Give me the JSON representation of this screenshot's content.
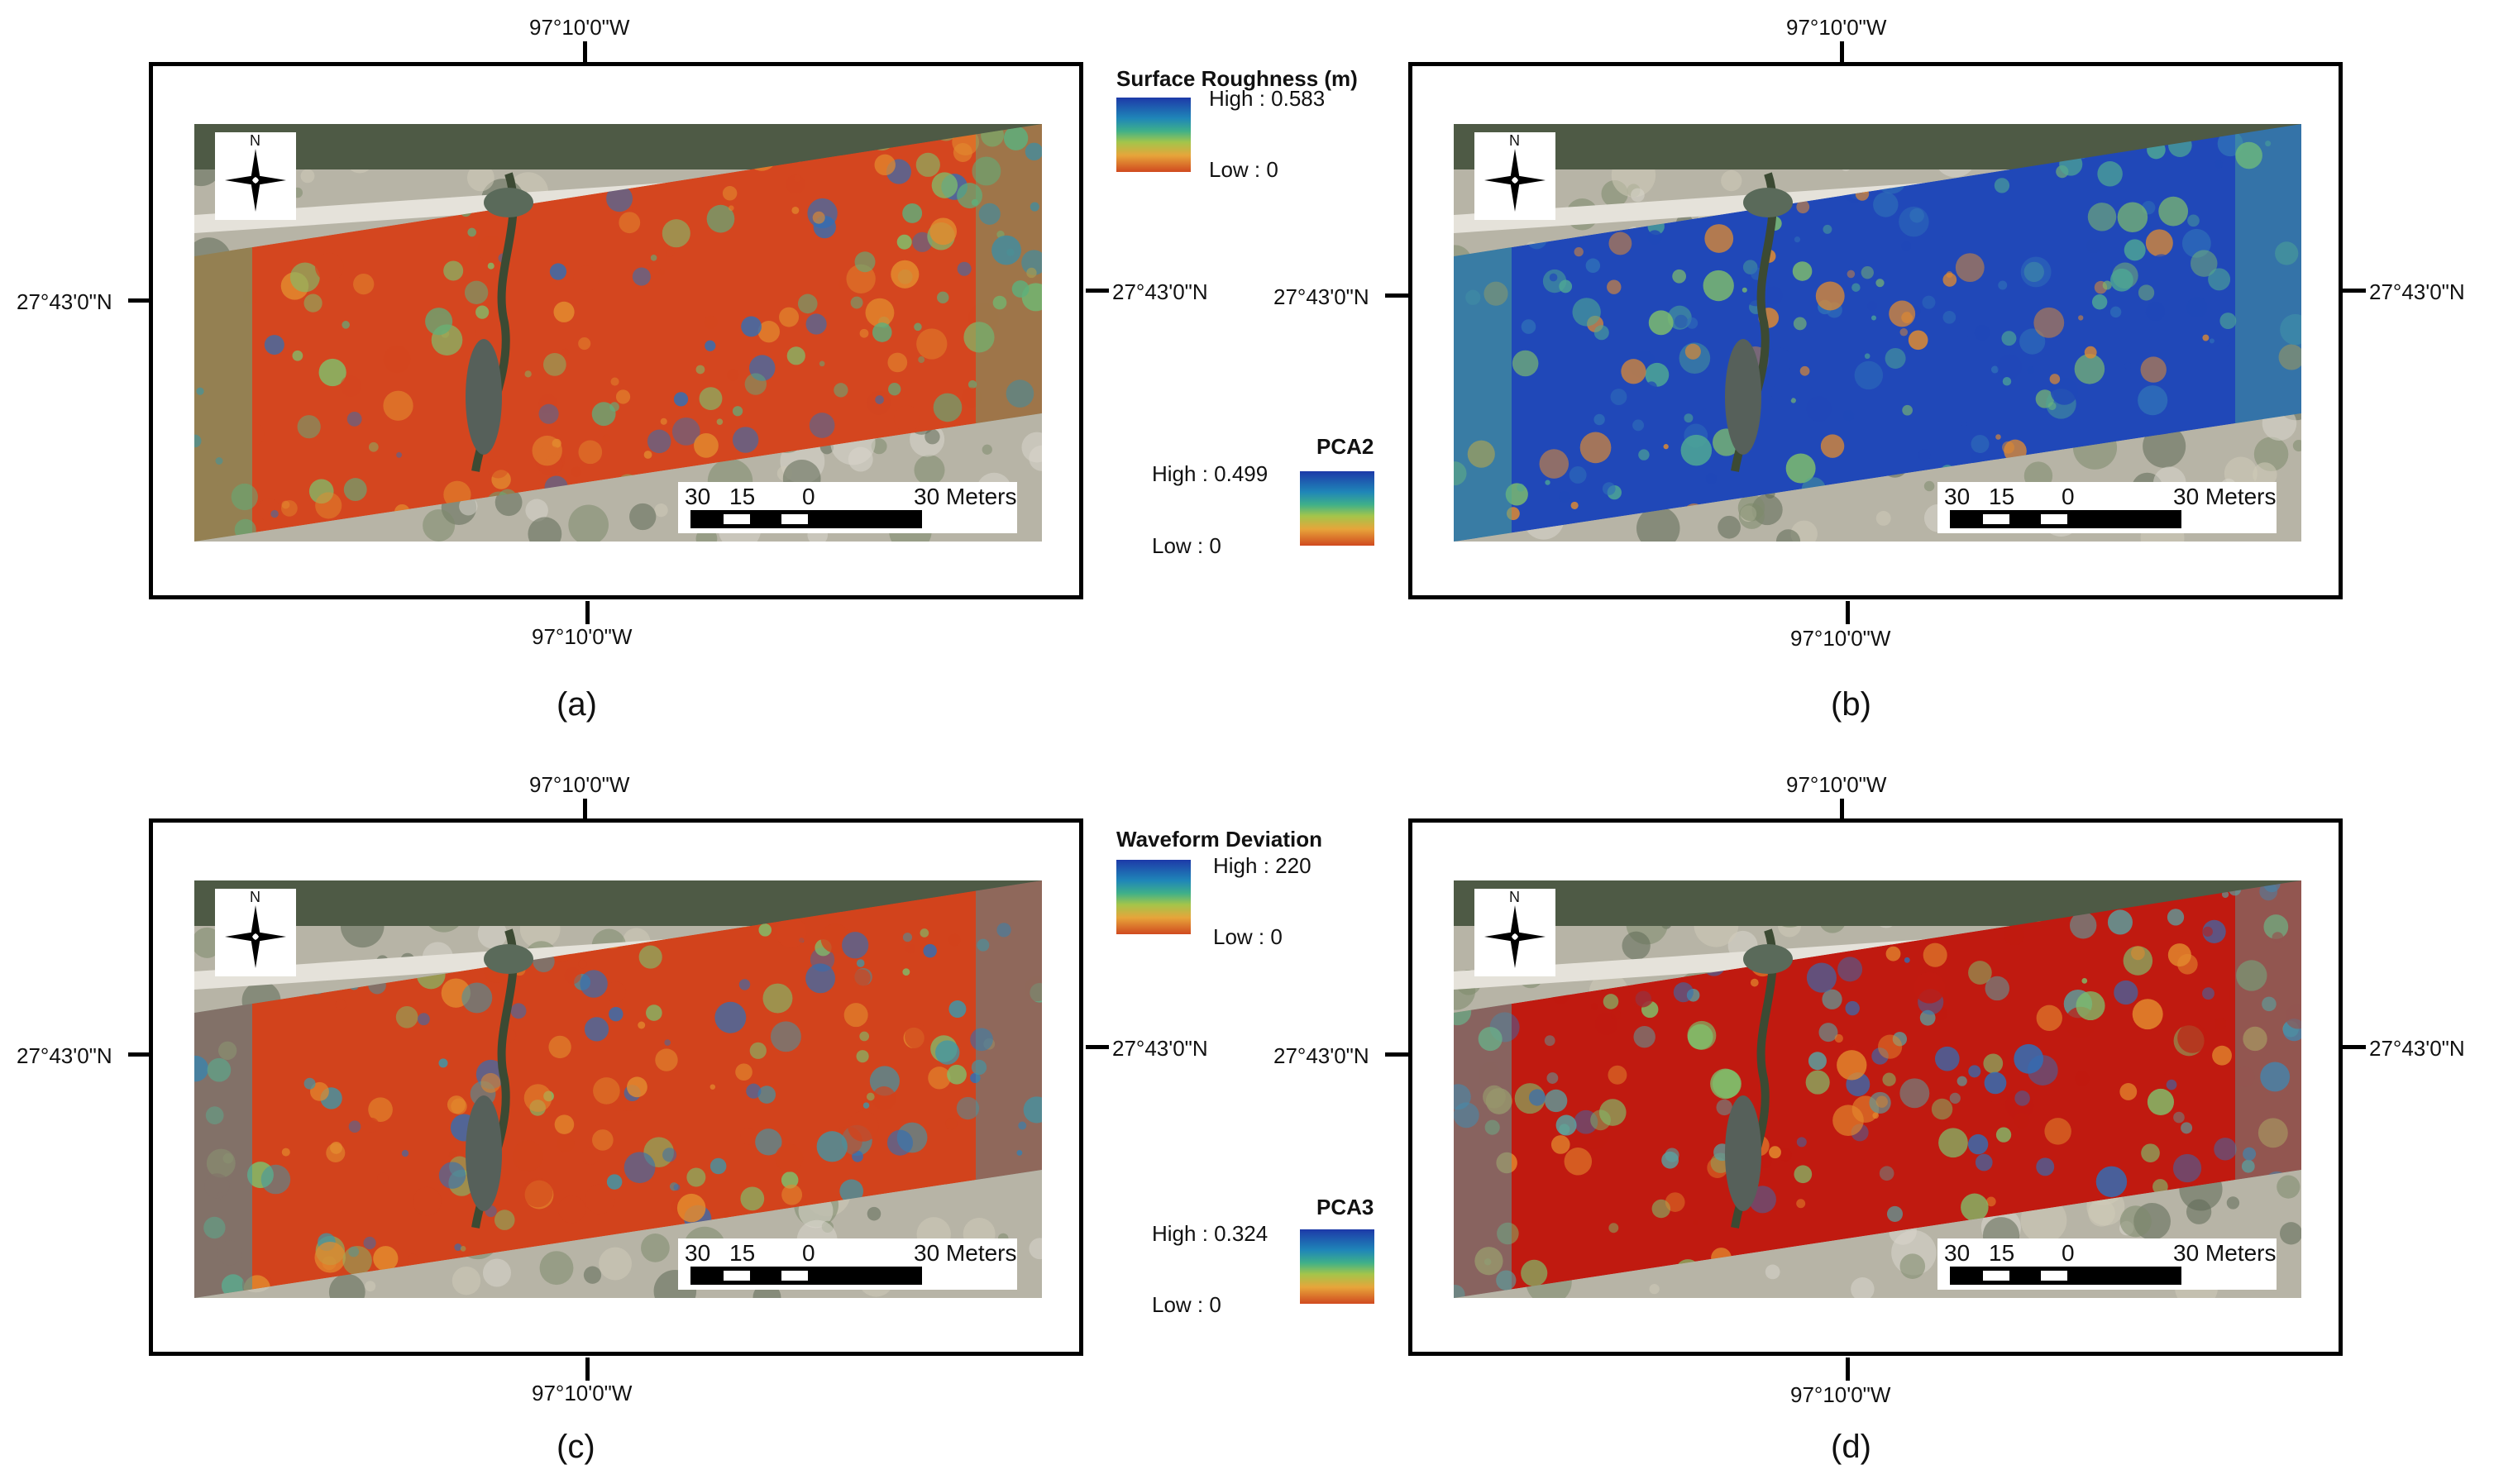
{
  "panels": [
    {
      "id": "a",
      "caption": "(a)",
      "lon_top": "97°10'0\"W",
      "lon_bottom": "97°10'0\"W",
      "lat_left": "27°43'0\"N",
      "lat_right": "27°43'0\"N",
      "north_label": "N",
      "scale_labels": [
        "30",
        "15",
        "0",
        "30 Meters"
      ],
      "dominant_color": "#d4461f",
      "secondary_color": "#5eb07c"
    },
    {
      "id": "b",
      "caption": "(b)",
      "lon_top": "97°10'0\"W",
      "lon_bottom": "97°10'0\"W",
      "lat_left": "27°43'0\"N",
      "lat_right": "27°43'0\"N",
      "north_label": "N",
      "scale_labels": [
        "30",
        "15",
        "0",
        "30 Meters"
      ],
      "dominant_color": "#2048b8",
      "secondary_color": "#4ea894"
    },
    {
      "id": "c",
      "caption": "(c)",
      "lon_top": "97°10'0\"W",
      "lon_bottom": "97°10'0\"W",
      "lat_left": "27°43'0\"N",
      "lat_right": "27°43'0\"N",
      "north_label": "N",
      "scale_labels": [
        "30",
        "15",
        "0",
        "30 Meters"
      ],
      "dominant_color": "#d2431c",
      "secondary_color": "#3f97a8"
    },
    {
      "id": "d",
      "caption": "(d)",
      "lon_top": "97°10'0\"W",
      "lon_bottom": "97°10'0\"W",
      "lat_left": "27°43'0\"N",
      "lat_right": "27°43'0\"N",
      "north_label": "N",
      "scale_labels": [
        "30",
        "15",
        "0",
        "30 Meters"
      ],
      "dominant_color": "#c01a10",
      "secondary_color": "#5aa0a0"
    }
  ],
  "legends": {
    "surface_roughness": {
      "title": "Surface Roughness (m)",
      "high": "High : 0.583",
      "low": "Low : 0"
    },
    "pca2": {
      "title": "PCA2",
      "high": "High : 0.499",
      "low": "Low : 0"
    },
    "waveform_deviation": {
      "title": "Waveform Deviation",
      "high": "High : 220",
      "low": "Low : 0"
    },
    "pca3": {
      "title": "PCA3",
      "high": "High : 0.324",
      "low": "Low : 0"
    }
  },
  "colors": {
    "ramp_high": "#1d3aa8",
    "ramp_mid": "#3fb089",
    "ramp_low": "#d04a1f"
  }
}
